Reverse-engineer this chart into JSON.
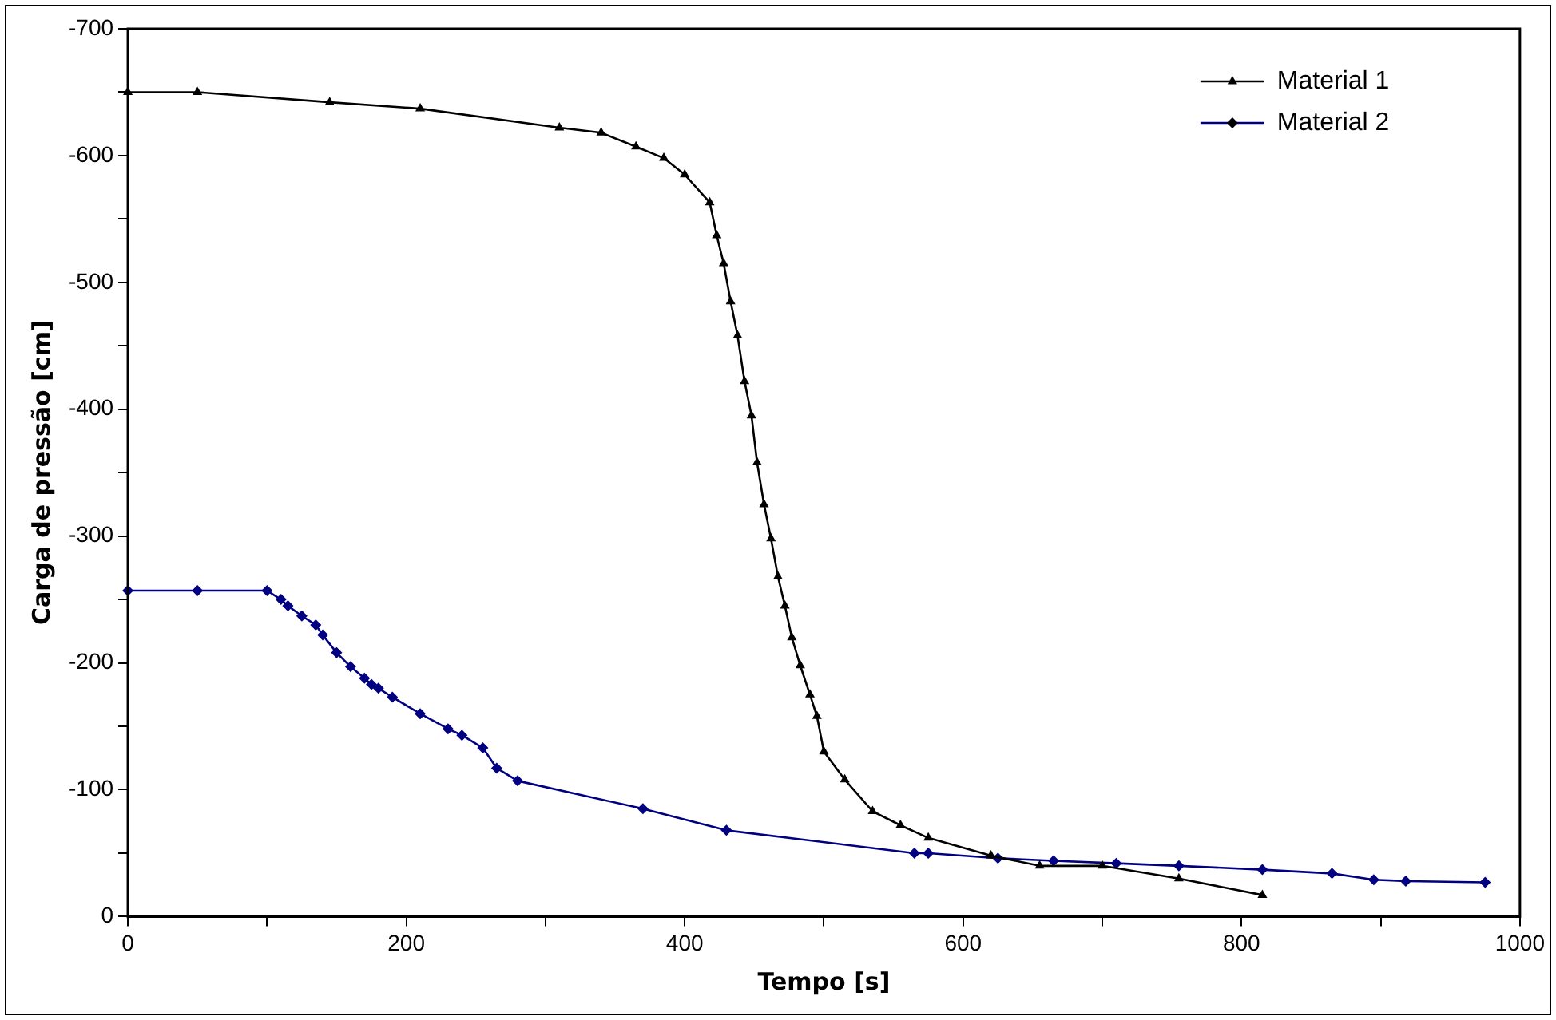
{
  "chart_data": {
    "type": "line",
    "xlabel": "Tempo [s]",
    "ylabel": "Carga de pressão [cm]",
    "xlim": [
      0,
      1000
    ],
    "xticks": [
      0,
      {
        "value": 100,
        "label": null
      },
      200,
      {
        "value": 300,
        "label": null
      },
      400,
      {
        "value": 500,
        "label": null
      },
      600,
      {
        "value": 700,
        "label": null
      },
      800,
      {
        "value": 900,
        "label": null
      },
      1000
    ],
    "ylim": [
      0,
      -700
    ],
    "yticks": [
      0,
      {
        "value": -50,
        "label": null
      },
      -100,
      {
        "value": -150,
        "label": null
      },
      -200,
      {
        "value": -250,
        "label": null
      },
      -300,
      {
        "value": -350,
        "label": null
      },
      -400,
      {
        "value": -450,
        "label": null
      },
      -500,
      {
        "value": -550,
        "label": null
      },
      -600,
      {
        "value": -650,
        "label": null
      },
      -700
    ],
    "grid": false,
    "legend": "top right",
    "line_style": "solid",
    "series": [
      {
        "name": "Material 1",
        "color": "#000000",
        "marker": "triangle",
        "x": [
          0,
          50,
          145,
          210,
          310,
          340,
          365,
          385,
          400,
          418,
          423,
          428,
          433,
          438,
          443,
          448,
          452,
          457,
          462,
          467,
          472,
          477,
          483,
          490,
          495,
          500,
          515,
          535,
          555,
          575,
          620,
          655,
          700,
          755,
          815
        ],
        "values": [
          -650,
          -650,
          -642,
          -637,
          -622,
          -618,
          -607,
          -598,
          -585,
          -563,
          -537,
          -515,
          -485,
          -458,
          -422,
          -395,
          -358,
          -325,
          -298,
          -268,
          -245,
          -220,
          -198,
          -175,
          -158,
          -130,
          -108,
          -83,
          -72,
          -62,
          -48,
          -40,
          -40,
          -30,
          -17
        ]
      },
      {
        "name": "Material 2",
        "color": "#000080",
        "marker": "diamond",
        "x": [
          0,
          50,
          100,
          110,
          115,
          125,
          135,
          140,
          150,
          160,
          170,
          175,
          180,
          190,
          210,
          230,
          240,
          255,
          265,
          280,
          370,
          430,
          565,
          575,
          625,
          665,
          710,
          755,
          815,
          865,
          895,
          918,
          975
        ],
        "values": [
          -257,
          -257,
          -257,
          -250,
          -245,
          -237,
          -230,
          -222,
          -208,
          -197,
          -188,
          -183,
          -180,
          -173,
          -160,
          -148,
          -143,
          -133,
          -117,
          -107,
          -85,
          -68,
          -50,
          -50,
          -46,
          -44,
          -42,
          -40,
          -37,
          -34,
          -29,
          -28,
          -27
        ]
      }
    ]
  }
}
